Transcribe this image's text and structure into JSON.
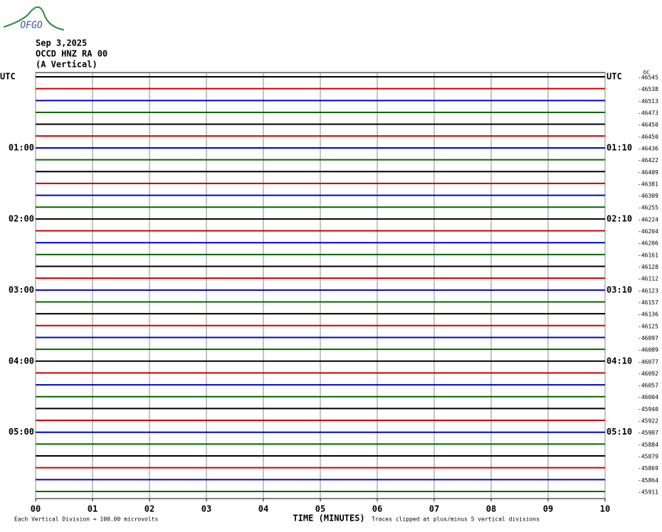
{
  "logo": "OFGO",
  "chart_data": {
    "type": "helicorder",
    "title": "Sep 3,2025",
    "subtitle": "OCCD HNZ RA 00",
    "component": "(A Vertical)",
    "x_label": "TIME (MINUTES)",
    "scale_note": "Each Vertical Division =  100.00 microvolts",
    "clip_note": "Traces clipped at plus/minus 5 vertical divisions",
    "offset_label": "DC",
    "xlim": [
      0,
      10
    ],
    "xticks": [
      {
        "value": 0,
        "label": "00"
      },
      {
        "value": 1,
        "label": "01"
      },
      {
        "value": 2,
        "label": "02"
      },
      {
        "value": 3,
        "label": "03"
      },
      {
        "value": 4,
        "label": "04"
      },
      {
        "value": 5,
        "label": "05"
      },
      {
        "value": 6,
        "label": "06"
      },
      {
        "value": 7,
        "label": "07"
      },
      {
        "value": 8,
        "label": "08"
      },
      {
        "value": 9,
        "label": "09"
      },
      10
    ],
    "grid": true,
    "colors": [
      "#000000",
      "#cc0000",
      "#0000cc",
      "#006600"
    ],
    "left_labels": [
      "UTC",
      null,
      null,
      null,
      null,
      null,
      "01:00",
      null,
      null,
      null,
      null,
      null,
      "02:00",
      null,
      null,
      null,
      null,
      null,
      "03:00",
      null,
      null,
      null,
      null,
      null,
      "04:00",
      null,
      null,
      null,
      null,
      null,
      "05:00",
      null,
      null,
      null,
      null,
      null
    ],
    "right_labels": [
      "UTC",
      null,
      null,
      null,
      null,
      null,
      "01:10",
      null,
      null,
      null,
      null,
      null,
      "02:10",
      null,
      null,
      null,
      null,
      null,
      "03:10",
      null,
      null,
      null,
      null,
      null,
      "04:10",
      null,
      null,
      null,
      null,
      null,
      "05:10",
      null,
      null,
      null,
      null,
      null
    ],
    "offsets": [
      -46545,
      -46538,
      -46513,
      -46473,
      -46450,
      -46450,
      -46436,
      -46422,
      -46409,
      -46381,
      -46309,
      -46255,
      -46224,
      -46204,
      -46206,
      -46161,
      -46128,
      -46112,
      -46123,
      -46157,
      -46136,
      -46125,
      -46097,
      -46089,
      -46077,
      -46092,
      -46057,
      -46004,
      -45940,
      -45922,
      -45907,
      -45884,
      -45879,
      -45869,
      -45864,
      -45911
    ]
  }
}
